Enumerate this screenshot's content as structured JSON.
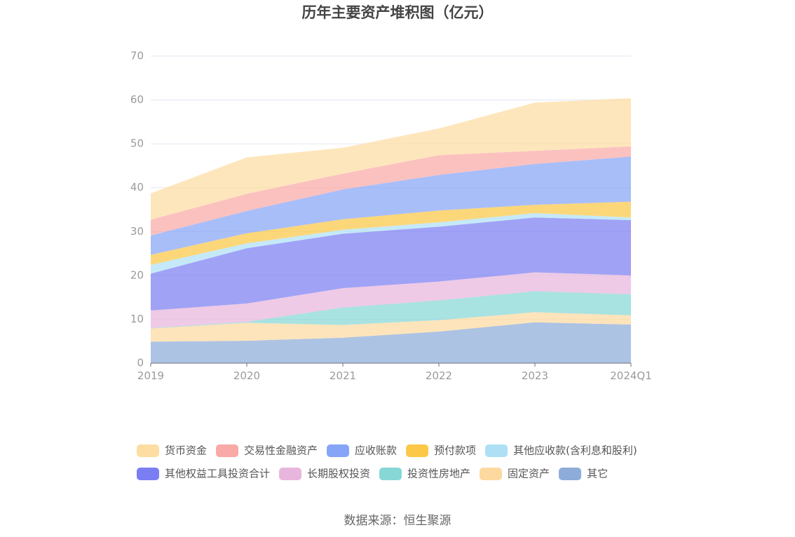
{
  "title": "历年主要资产堆积图（亿元）",
  "source": "数据来源：恒生聚源",
  "chart_data": {
    "type": "area",
    "stacked": true,
    "title": "历年主要资产堆积图（亿元）",
    "categories": [
      "2019",
      "2020",
      "2021",
      "2022",
      "2023",
      "2024Q1"
    ],
    "ylim": [
      0,
      70
    ],
    "yticks": [
      0,
      10,
      20,
      30,
      40,
      50,
      60,
      70
    ],
    "grid": true,
    "legend_position": "bottom",
    "series": [
      {
        "name": "其它",
        "color": "#8eacd9",
        "values": [
          4.9,
          5.1,
          5.8,
          7.2,
          9.3,
          8.8
        ]
      },
      {
        "name": "固定资产",
        "color": "#fdd9a0",
        "values": [
          3.0,
          4.1,
          2.9,
          2.6,
          2.3,
          2.1
        ]
      },
      {
        "name": "投资性房地产",
        "color": "#86d7d6",
        "values": [
          0.1,
          0.2,
          4.0,
          4.5,
          4.8,
          4.8
        ]
      },
      {
        "name": "长期股权投资",
        "color": "#e8b6dc",
        "values": [
          4.0,
          4.2,
          4.4,
          4.3,
          4.3,
          4.3
        ]
      },
      {
        "name": "其他权益工具投资合计",
        "color": "#7b7ef2",
        "values": [
          8.4,
          12.6,
          12.4,
          12.5,
          12.5,
          12.6
        ]
      },
      {
        "name": "其他应收款(含利息和股利)",
        "color": "#aee0f5",
        "values": [
          2.0,
          1.1,
          0.9,
          1.0,
          1.0,
          0.6
        ]
      },
      {
        "name": "预付款项",
        "color": "#fbc847",
        "values": [
          2.3,
          2.3,
          2.4,
          2.7,
          1.9,
          3.6
        ]
      },
      {
        "name": "应收账款",
        "color": "#86a5f7",
        "values": [
          4.4,
          5.1,
          6.8,
          8.1,
          9.3,
          10.3
        ]
      },
      {
        "name": "交易性金融资产",
        "color": "#f9a9a6",
        "values": [
          3.6,
          3.9,
          3.6,
          4.5,
          3.0,
          2.3
        ]
      },
      {
        "name": "货币资金",
        "color": "#fddda2",
        "values": [
          6.0,
          8.3,
          5.9,
          6.1,
          11.0,
          11.0
        ]
      }
    ],
    "legend_order": [
      "货币资金",
      "交易性金融资产",
      "应收账款",
      "预付款项",
      "其他应收款(含利息和股利)",
      "其他权益工具投资合计",
      "长期股权投资",
      "投资性房地产",
      "固定资产",
      "其它"
    ]
  }
}
